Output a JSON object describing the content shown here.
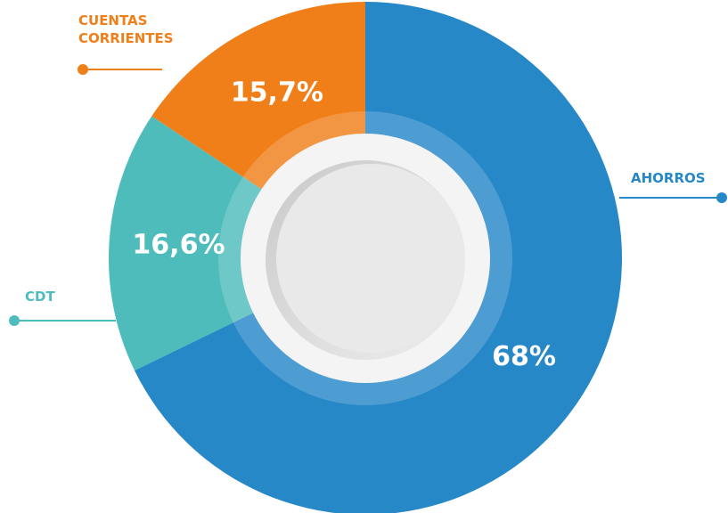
{
  "chart_data": {
    "type": "pie",
    "categories": [
      "AHORROS",
      "CDT",
      "CUENTAS CORRIENTES"
    ],
    "values": [
      68,
      16.6,
      15.7
    ],
    "value_labels": [
      "68%",
      "16,6%",
      "15,7%"
    ],
    "colors": [
      "#2788c8",
      "#4fbcbc",
      "#f07f1a"
    ]
  }
}
